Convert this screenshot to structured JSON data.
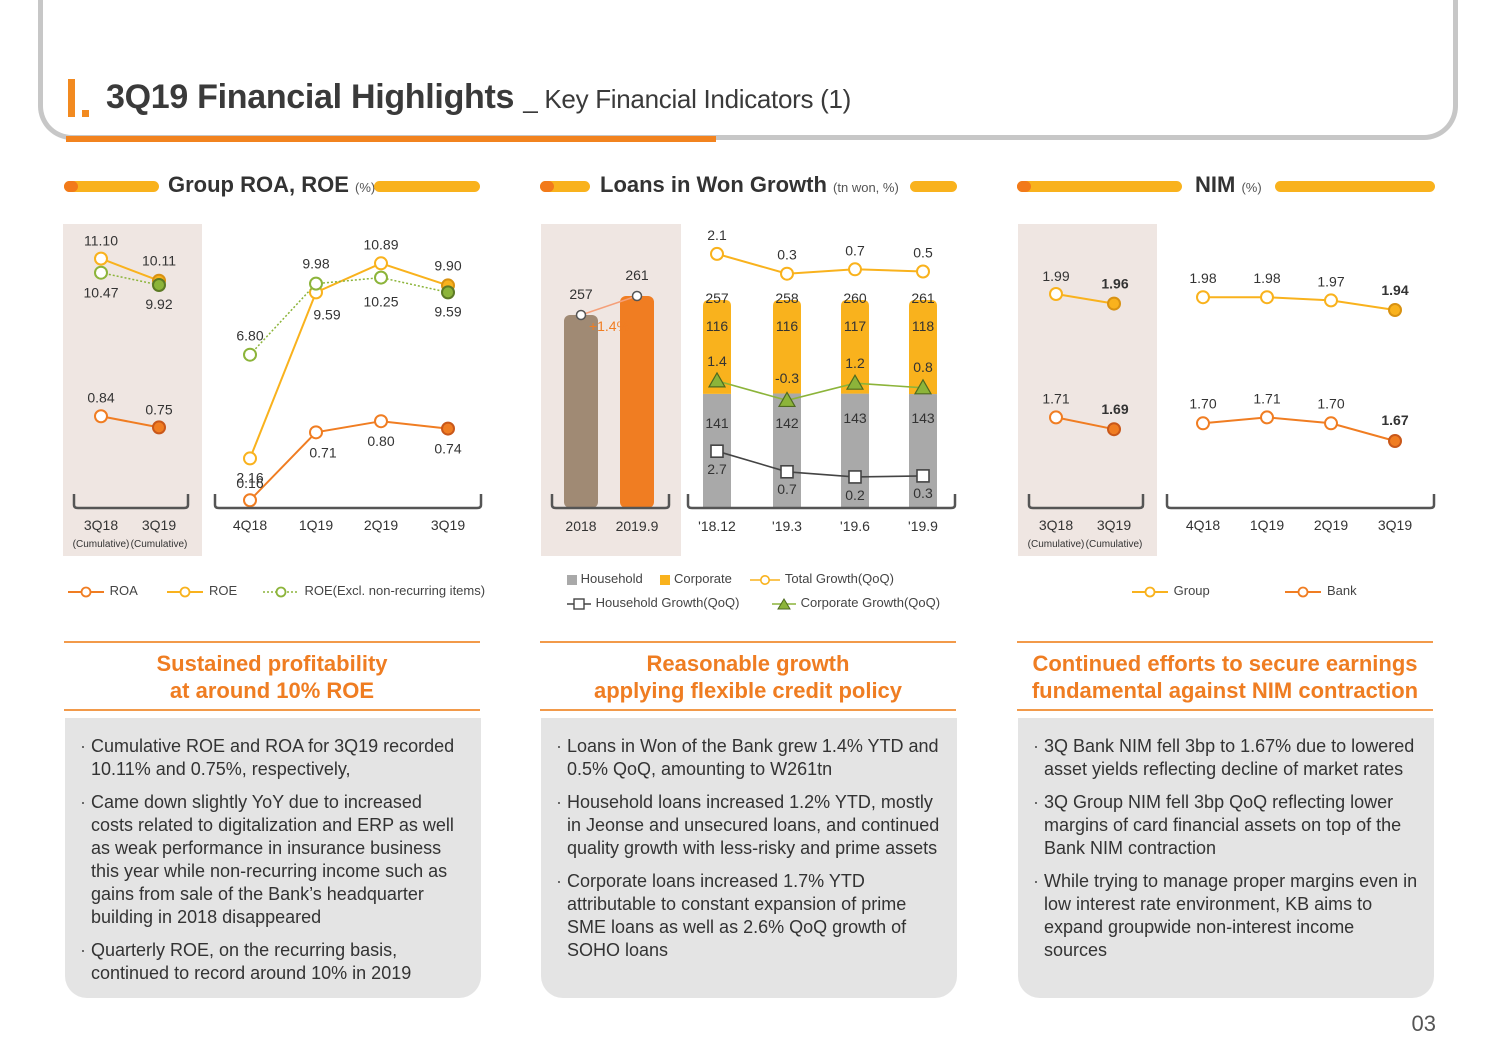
{
  "header": {
    "title": "3Q19 Financial Highlights",
    "subtitle": "_ Key Financial Indicators (1)",
    "page_number": "03"
  },
  "colors": {
    "orange": "#f07d22",
    "yellow": "#f9b21d",
    "green": "#8cb43a",
    "gray_bar": "#a9a9a9",
    "shade": "#efe6e2"
  },
  "sections": {
    "roa_roe": {
      "title": "Group ROA, ROE",
      "unit": "(%)",
      "message_line1": "Sustained profitability",
      "message_line2": "at around 10% ROE",
      "bullets": [
        "Cumulative ROE and ROA for 3Q19 recorded 10.11% and 0.75%, respectively,",
        "Came down slightly YoY due to increased costs related to digitalization and ERP as well as weak performance in insurance business this year while non-recurring income such as gains from sale of the Bank’s headquarter building in 2018 disappeared",
        "Quarterly ROE, on the recurring basis, continued to record around 10% in 2019"
      ],
      "legend": [
        "ROA",
        "ROE",
        "ROE(Excl. non-recurring items)"
      ]
    },
    "loans": {
      "title": "Loans in Won Growth",
      "unit": "(tn won, %)",
      "message_line1": "Reasonable growth",
      "message_line2": "applying flexible credit policy",
      "bullets": [
        "Loans in Won of the Bank grew 1.4% YTD and 0.5% QoQ, amounting to W261tn",
        "Household loans increased 1.2% YTD, mostly in Jeonse and unsecured loans, and continued quality growth with less-risky and prime assets",
        "Corporate loans increased 1.7% YTD attributable to constant expansion of prime SME loans as well as 2.6% QoQ growth of SOHO loans"
      ],
      "legend": [
        "Household",
        "Corporate",
        "Total Growth(QoQ)",
        "Household Growth(QoQ)",
        "Corporate Growth(QoQ)"
      ]
    },
    "nim": {
      "title": "NIM",
      "unit": "(%)",
      "message_line1": "Continued efforts to secure earnings",
      "message_line2": "fundamental against NIM contraction",
      "bullets": [
        "3Q Bank NIM fell 3bp to 1.67% due to lowered asset yields reflecting decline of market rates",
        "3Q Group NIM fell 3bp QoQ reflecting lower margins of card financial assets on top of the Bank NIM contraction",
        "While trying to manage proper margins even in low interest rate environment, KB aims to expand groupwide non-interest income sources"
      ],
      "legend": [
        "Group",
        "Bank"
      ]
    }
  },
  "chart_data": [
    {
      "type": "line",
      "title": "Group ROA, ROE",
      "panel": "cumulative",
      "categories": [
        "3Q18",
        "3Q19"
      ],
      "category_notes": [
        "(Cumulative)",
        "(Cumulative)"
      ],
      "series": [
        {
          "name": "ROE",
          "values": [
            11.1,
            10.11
          ],
          "labels": [
            "11.10",
            "10.11"
          ]
        },
        {
          "name": "ROE(Excl. non-recurring items)",
          "values": [
            10.47,
            9.92
          ],
          "labels": [
            "10.47",
            "9.92"
          ]
        },
        {
          "name": "ROA",
          "values": [
            0.84,
            0.75
          ],
          "labels": [
            "0.84",
            "0.75"
          ]
        }
      ]
    },
    {
      "type": "line",
      "title": "Group ROA, ROE",
      "panel": "quarterly",
      "categories": [
        "4Q18",
        "1Q19",
        "2Q19",
        "3Q19"
      ],
      "series": [
        {
          "name": "ROE",
          "values": [
            2.16,
            9.59,
            10.89,
            9.9
          ],
          "labels": [
            "2.16",
            "9.59",
            "10.89",
            "9.90"
          ]
        },
        {
          "name": "ROE(Excl. non-recurring items)",
          "values": [
            6.8,
            9.98,
            10.25,
            9.59
          ],
          "labels": [
            "6.80",
            "9.98",
            "10.25",
            "9.59"
          ]
        },
        {
          "name": "ROA",
          "values": [
            0.16,
            0.71,
            0.8,
            0.74
          ],
          "labels": [
            "0.16",
            "0.71",
            "0.80",
            "0.74"
          ]
        }
      ]
    },
    {
      "type": "bar",
      "title": "Loans in Won Growth",
      "panel": "annual",
      "categories": [
        "2018",
        "2019.9"
      ],
      "values": [
        257,
        261
      ],
      "labels": [
        "257",
        "261"
      ],
      "growth_label": "+1.4%"
    },
    {
      "type": "bar",
      "title": "Loans in Won Growth",
      "panel": "quarterly",
      "categories": [
        "'18.12",
        "'19.3",
        "'19.6",
        "'19.9"
      ],
      "totals": [
        "257",
        "258",
        "260",
        "261"
      ],
      "series": [
        {
          "name": "Household",
          "values": [
            141,
            142,
            143,
            143
          ]
        },
        {
          "name": "Corporate",
          "values": [
            116,
            116,
            117,
            118
          ]
        }
      ],
      "growth_series": [
        {
          "name": "Total Growth(QoQ)",
          "values": [
            2.1,
            0.3,
            0.7,
            0.5
          ],
          "labels": [
            "2.1",
            "0.3",
            "0.7",
            "0.5"
          ]
        },
        {
          "name": "Corporate Growth(QoQ)",
          "values": [
            1.4,
            -0.3,
            1.2,
            0.8
          ],
          "labels": [
            "1.4",
            "-0.3",
            "1.2",
            "0.8"
          ]
        },
        {
          "name": "Household Growth(QoQ)",
          "values": [
            2.7,
            0.7,
            0.2,
            0.3
          ],
          "labels": [
            "2.7",
            "0.7",
            "0.2",
            "0.3"
          ]
        }
      ]
    },
    {
      "type": "line",
      "title": "NIM",
      "panel": "cumulative",
      "categories": [
        "3Q18",
        "3Q19"
      ],
      "category_notes": [
        "(Cumulative)",
        "(Cumulative)"
      ],
      "series": [
        {
          "name": "Group",
          "values": [
            1.99,
            1.96
          ],
          "labels": [
            "1.99",
            "1.96"
          ]
        },
        {
          "name": "Bank",
          "values": [
            1.71,
            1.69
          ],
          "labels": [
            "1.71",
            "1.69"
          ]
        }
      ]
    },
    {
      "type": "line",
      "title": "NIM",
      "panel": "quarterly",
      "categories": [
        "4Q18",
        "1Q19",
        "2Q19",
        "3Q19"
      ],
      "series": [
        {
          "name": "Group",
          "values": [
            1.98,
            1.98,
            1.97,
            1.94
          ],
          "labels": [
            "1.98",
            "1.98",
            "1.97",
            "1.94"
          ]
        },
        {
          "name": "Bank",
          "values": [
            1.7,
            1.71,
            1.7,
            1.67
          ],
          "labels": [
            "1.70",
            "1.71",
            "1.70",
            "1.67"
          ]
        }
      ]
    }
  ]
}
